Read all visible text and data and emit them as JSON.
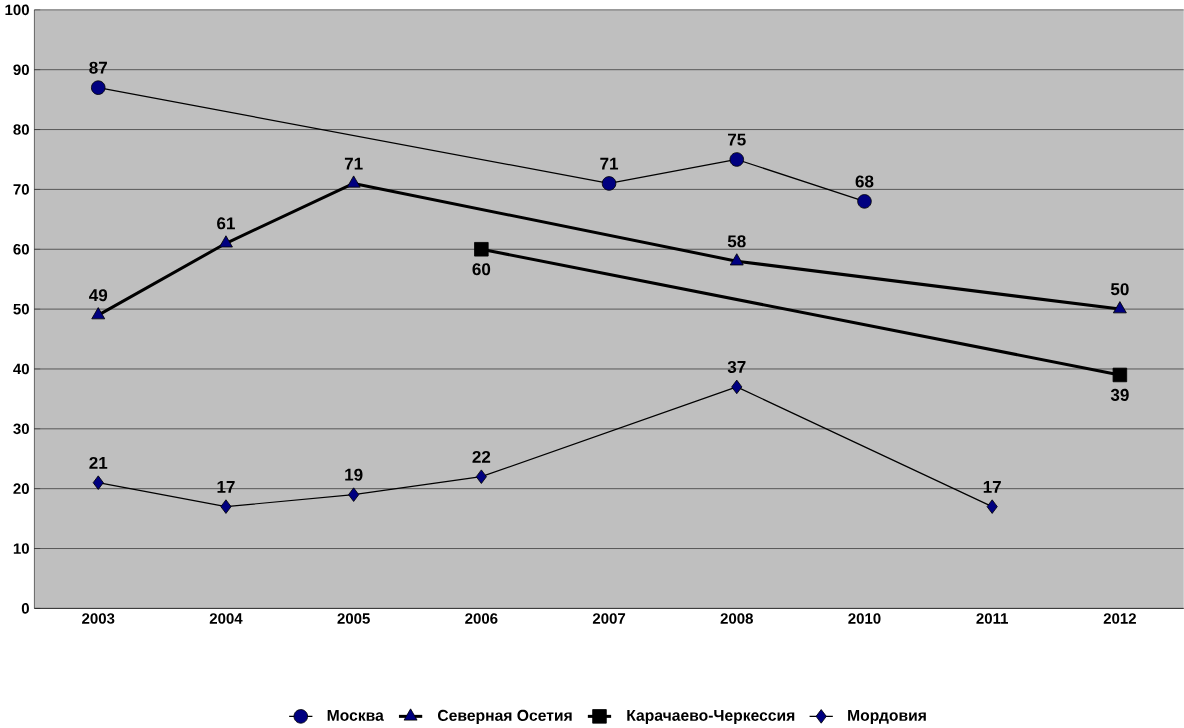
{
  "chart_data": {
    "type": "line",
    "categories": [
      "2003",
      "2004",
      "2005",
      "2006",
      "2007",
      "2008",
      "2010",
      "2011",
      "2012"
    ],
    "series": [
      {
        "name": "Москва",
        "color": "#000080",
        "marker": "circle",
        "values": [
          87,
          null,
          null,
          null,
          71,
          75,
          68,
          null,
          null
        ]
      },
      {
        "name": "Северная Осетия",
        "color": "#000080",
        "marker": "triangle",
        "values": [
          49,
          61,
          71,
          null,
          null,
          58,
          null,
          null,
          50
        ]
      },
      {
        "name": "Карачаево-Черкессия",
        "color": "#000000",
        "marker": "square",
        "values": [
          null,
          null,
          null,
          60,
          null,
          null,
          null,
          null,
          39
        ]
      },
      {
        "name": "Мордовия",
        "color": "#000080",
        "marker": "diamond",
        "values": [
          21,
          17,
          19,
          22,
          null,
          37,
          null,
          17,
          null
        ]
      }
    ],
    "ylim": [
      0,
      100
    ],
    "yticks": [
      0,
      10,
      20,
      30,
      40,
      50,
      60,
      70,
      80,
      90,
      100
    ],
    "grid": "y",
    "legend": "bottom",
    "data_labels": true,
    "line_style": "solid"
  }
}
